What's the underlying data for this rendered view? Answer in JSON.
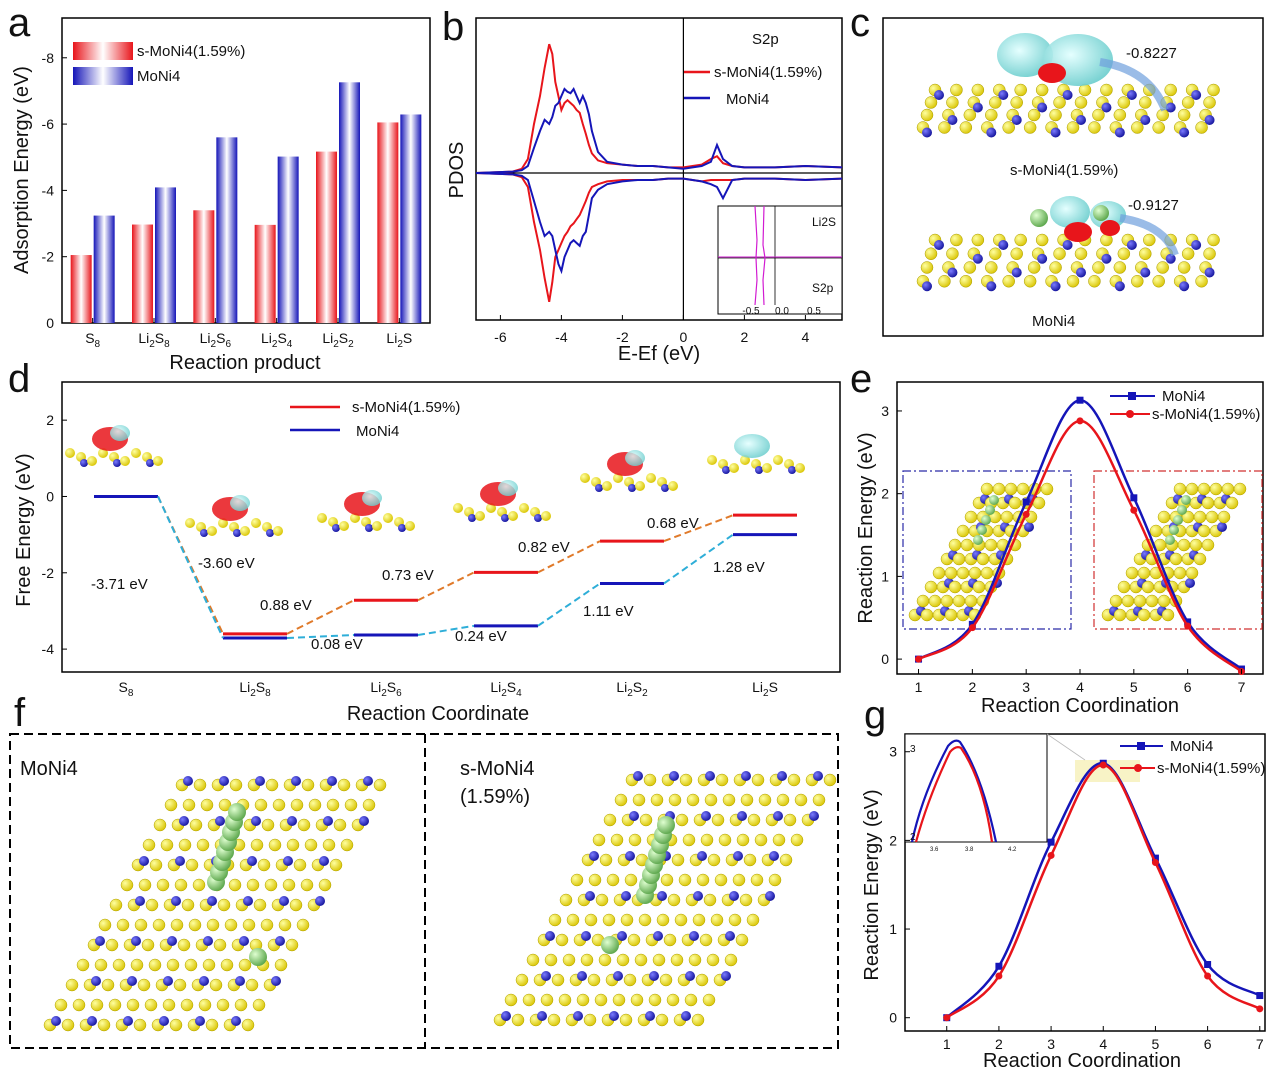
{
  "panels": {
    "a": {
      "label": "a"
    },
    "b": {
      "label": "b"
    },
    "c": {
      "label": "c",
      "annot1": "-0.8227",
      "annot2": "-0.9127",
      "cap1": "s-MoNi4(1.59%)",
      "cap2": "MoNi4"
    },
    "d": {
      "label": "d"
    },
    "e": {
      "label": "e"
    },
    "f": {
      "label": "f",
      "left_label": "MoNi4",
      "right_label": "s-MoNi4",
      "right_label2": "(1.59%)"
    },
    "g": {
      "label": "g"
    }
  },
  "colors": {
    "red": "#e8151b",
    "blue": "#1515b8",
    "orange": "#e07a2a",
    "cyan": "#2eaed8",
    "magenta": "#d21bd2"
  },
  "chart_data": [
    {
      "id": "a",
      "type": "bar",
      "categories": [
        "S8",
        "Li2S8",
        "Li2S6",
        "Li2S4",
        "Li2S2",
        "Li2S"
      ],
      "series": [
        {
          "name": "s-MoNi4(1.59%)",
          "values": [
            -2.05,
            -2.97,
            -3.4,
            -2.96,
            -5.17,
            -6.05
          ]
        },
        {
          "name": "MoNi4",
          "values": [
            -3.24,
            -4.09,
            -5.6,
            -5.02,
            -7.26,
            -6.29
          ]
        }
      ],
      "xlabel": "Reaction product",
      "ylabel": "Adsorption Energy (eV)",
      "ylim": [
        0,
        -9.2
      ],
      "yticks": [
        0,
        -2,
        -4,
        -6,
        -8
      ]
    },
    {
      "id": "b",
      "type": "line",
      "title": "S2p",
      "xlabel": "E-Ef (eV)",
      "ylabel": "PDOS",
      "xlim": [
        -6.8,
        5.2
      ],
      "xticks": [
        -6,
        -4,
        -2,
        0,
        2,
        4
      ],
      "ylim": [
        -1,
        1
      ],
      "series": [
        {
          "name": "s-MoNi4(1.59%)",
          "x": [
            -6.8,
            -5.6,
            -5.3,
            -5.1,
            -4.9,
            -4.7,
            -4.55,
            -4.4,
            -4.3,
            -4.2,
            -4.1,
            -4.0,
            -3.9,
            -3.8,
            -3.7,
            -3.6,
            -3.5,
            -3.4,
            -3.3,
            -3.2,
            -3.1,
            -3.0,
            -2.8,
            -2.5,
            -2.0,
            -1.5,
            -1.0,
            -0.5,
            0,
            0.3,
            0.6,
            0.9,
            1.1,
            1.3,
            1.6,
            2.0,
            3.0,
            4.0,
            5.2
          ],
          "up": [
            0,
            0.01,
            0.03,
            0.1,
            0.35,
            0.55,
            0.75,
            0.92,
            0.85,
            0.65,
            0.55,
            0.45,
            0.5,
            0.52,
            0.5,
            0.48,
            0.45,
            0.43,
            0.35,
            0.28,
            0.2,
            0.14,
            0.09,
            0.07,
            0.06,
            0.05,
            0.05,
            0.04,
            0.04,
            0.05,
            0.06,
            0.1,
            0.12,
            0.07,
            0.05,
            0.04,
            0.04,
            0.05,
            0.04
          ],
          "down": [
            0,
            -0.01,
            -0.03,
            -0.1,
            -0.35,
            -0.55,
            -0.75,
            -0.92,
            -0.78,
            -0.6,
            -0.55,
            -0.5,
            -0.45,
            -0.42,
            -0.38,
            -0.36,
            -0.33,
            -0.3,
            -0.25,
            -0.2,
            -0.14,
            -0.1,
            -0.08,
            -0.06,
            -0.05,
            -0.05,
            -0.05,
            -0.04,
            -0.04,
            -0.05,
            -0.06,
            -0.05,
            -0.05,
            -0.05,
            -0.05,
            -0.04,
            -0.04,
            -0.05,
            -0.04
          ]
        },
        {
          "name": "MoNi4",
          "x": [
            -6.8,
            -5.6,
            -5.3,
            -5.1,
            -4.9,
            -4.7,
            -4.55,
            -4.4,
            -4.3,
            -4.2,
            -4.1,
            -4.0,
            -3.9,
            -3.8,
            -3.7,
            -3.6,
            -3.5,
            -3.4,
            -3.3,
            -3.2,
            -3.1,
            -3.0,
            -2.8,
            -2.5,
            -2.0,
            -1.5,
            -1.0,
            -0.5,
            0,
            0.3,
            0.6,
            0.9,
            1.1,
            1.3,
            1.6,
            2.0,
            3.0,
            4.0,
            5.2
          ],
          "up": [
            0,
            0.01,
            0.02,
            0.05,
            0.18,
            0.3,
            0.38,
            0.35,
            0.4,
            0.48,
            0.5,
            0.55,
            0.6,
            0.58,
            0.57,
            0.6,
            0.55,
            0.5,
            0.55,
            0.5,
            0.42,
            0.3,
            0.15,
            0.08,
            0.06,
            0.05,
            0.05,
            0.04,
            0.03,
            0.04,
            0.05,
            0.08,
            0.2,
            0.1,
            0.05,
            0.04,
            0.04,
            0.05,
            0.04
          ],
          "down": [
            0,
            -0.01,
            -0.02,
            -0.05,
            -0.2,
            -0.35,
            -0.45,
            -0.42,
            -0.45,
            -0.55,
            -0.65,
            -0.7,
            -0.6,
            -0.55,
            -0.5,
            -0.48,
            -0.5,
            -0.52,
            -0.45,
            -0.42,
            -0.3,
            -0.18,
            -0.12,
            -0.08,
            -0.06,
            -0.05,
            -0.05,
            -0.04,
            -0.04,
            -0.05,
            -0.06,
            -0.08,
            -0.1,
            -0.18,
            -0.05,
            -0.04,
            -0.04,
            -0.05,
            -0.04
          ]
        }
      ],
      "inset": {
        "labels": [
          "Li2S",
          "S2p"
        ],
        "xticks": [
          "-0.5",
          "0.0",
          "0.5"
        ]
      }
    },
    {
      "id": "d",
      "type": "line",
      "xlabel": "Reaction Coordinate",
      "ylabel": "Free Energy (eV)",
      "categories": [
        "S8",
        "Li2S8",
        "Li2S6",
        "Li2S4",
        "Li2S2",
        "Li2S"
      ],
      "ylim": [
        -4.6,
        3.0
      ],
      "yticks": [
        2,
        0,
        -2,
        -4
      ],
      "series": [
        {
          "name": "s-MoNi4(1.59%)",
          "values": [
            0,
            -3.6,
            -2.72,
            -1.99,
            -1.17,
            -0.49
          ]
        },
        {
          "name": "MoNi4",
          "values": [
            0,
            -3.71,
            -3.63,
            -3.39,
            -2.28,
            -1.0
          ]
        }
      ],
      "annotations": [
        "-3.71 eV",
        "-3.60 eV",
        "0.88 eV",
        "0.73 eV",
        "0.82 eV",
        "0.68 eV",
        "0.08 eV",
        "0.24 eV",
        "1.11 eV",
        "1.28 eV"
      ]
    },
    {
      "id": "e",
      "type": "line",
      "xlabel": "Reaction Coordination",
      "ylabel": "Reaction Energy (eV)",
      "xlim": [
        0.6,
        7.4
      ],
      "ylim": [
        -0.18,
        3.35
      ],
      "xticks": [
        1,
        2,
        3,
        4,
        5,
        6,
        7
      ],
      "yticks": [
        0,
        1,
        2,
        3
      ],
      "series": [
        {
          "name": "MoNi4",
          "x": [
            1,
            2,
            3,
            4,
            5,
            6,
            7
          ],
          "values": [
            0,
            0.42,
            1.9,
            3.13,
            1.95,
            0.45,
            -0.12
          ]
        },
        {
          "name": "s-MoNi4(1.59%)",
          "x": [
            1,
            2,
            3,
            4,
            5,
            6,
            7
          ],
          "values": [
            0,
            0.38,
            1.75,
            2.88,
            1.8,
            0.4,
            -0.15
          ]
        }
      ]
    },
    {
      "id": "g",
      "type": "line",
      "xlabel": "Reaction Coordination",
      "ylabel": "Reaction Energy (eV)",
      "xlim": [
        0.2,
        7.1
      ],
      "ylim": [
        -0.15,
        3.2
      ],
      "xticks": [
        1,
        2,
        3,
        4,
        5,
        6,
        7
      ],
      "yticks": [
        0,
        1,
        2,
        3
      ],
      "series": [
        {
          "name": "MoNi4",
          "x": [
            1,
            2,
            3,
            4,
            5,
            6,
            7
          ],
          "values": [
            0,
            0.58,
            1.98,
            2.87,
            1.8,
            0.6,
            0.25
          ]
        },
        {
          "name": "s-MoNi4(1.59%)",
          "x": [
            1,
            2,
            3,
            4,
            5,
            6,
            7
          ],
          "values": [
            0,
            0.47,
            1.83,
            2.85,
            1.75,
            0.47,
            0.1
          ]
        }
      ],
      "inset": {
        "yticks": [
          "3",
          "2"
        ],
        "xticks": [
          "3.6",
          "3.8",
          "4.2"
        ]
      }
    }
  ]
}
